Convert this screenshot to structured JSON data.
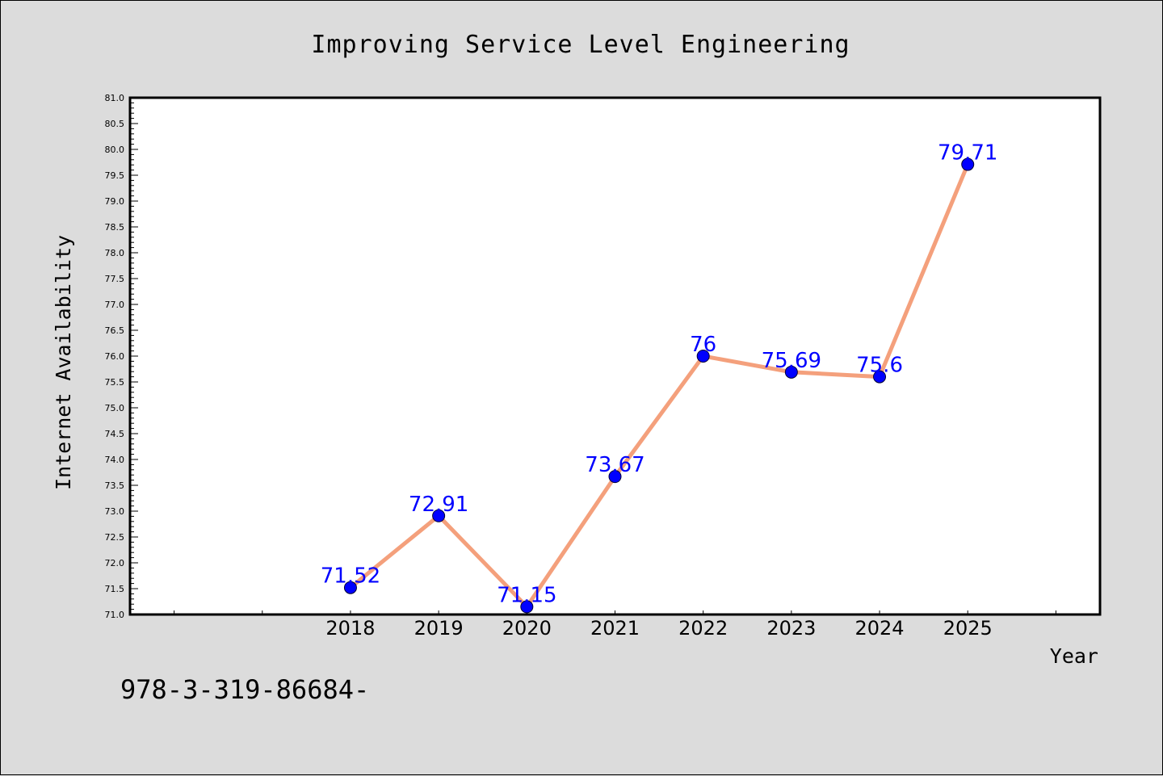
{
  "footer_text": "978-3-319-86684-",
  "chart_data": {
    "type": "line",
    "title": "Improving Service Level Engineering",
    "xlabel": "Year",
    "ylabel": "Internet Availability",
    "x_range": [
      2015.5,
      2026.5
    ],
    "ylim": [
      71.0,
      81.0
    ],
    "categories": [
      "2018",
      "2019",
      "2020",
      "2021",
      "2022",
      "2023",
      "2024",
      "2025"
    ],
    "x": [
      2018,
      2019,
      2020,
      2021,
      2022,
      2023,
      2024,
      2025
    ],
    "series": [
      {
        "values": [
          71.52,
          72.91,
          71.15,
          73.67,
          76,
          75.69,
          75.6,
          79.71
        ],
        "data_labels": [
          "71.52",
          "72.91",
          "71.15",
          "73.67",
          "76",
          "75.69",
          "75.6",
          "79.71"
        ],
        "line_color": "#f4a07c",
        "marker_color": "#0000ff"
      }
    ],
    "y_ticks": [
      "71.0",
      "71.5",
      "72.0",
      "72.5",
      "73.0",
      "73.5",
      "74.0",
      "74.5",
      "75.0",
      "75.5",
      "76.0",
      "76.5",
      "77.0",
      "77.5",
      "78.0",
      "78.5",
      "79.0",
      "79.5",
      "80.0",
      "80.5",
      "81.0"
    ],
    "grid": false,
    "legend": "none",
    "colors": {
      "background": "#dcdcdc",
      "plot_background": "#ffffff",
      "line": "#f4a07c",
      "marker": "#0000ff",
      "data_label": "#0000ff"
    }
  }
}
